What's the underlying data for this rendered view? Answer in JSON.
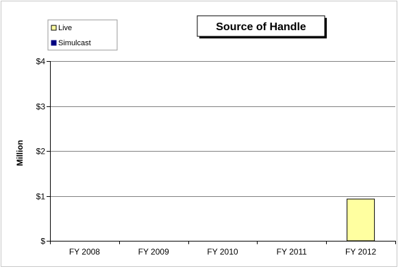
{
  "chart_data": {
    "type": "bar",
    "title": "Source of Handle",
    "ylabel": "Million",
    "xlabel": "",
    "categories": [
      "FY 2008",
      "FY 2009",
      "FY 2010",
      "FY 2011",
      "FY 2012"
    ],
    "series": [
      {
        "name": "Live",
        "values": [
          0,
          0,
          0,
          0,
          0.93
        ],
        "color": "#ffffa0"
      },
      {
        "name": "Simulcast",
        "values": [
          0,
          0,
          0,
          0,
          0
        ],
        "color": "#000080"
      }
    ],
    "ylim": [
      0,
      4
    ],
    "yticks": [
      0,
      1,
      2,
      3,
      4
    ],
    "ytick_labels": [
      "$",
      "$1",
      "$2",
      "$3",
      "$4"
    ],
    "grid": true,
    "legend_position": "top-left"
  }
}
